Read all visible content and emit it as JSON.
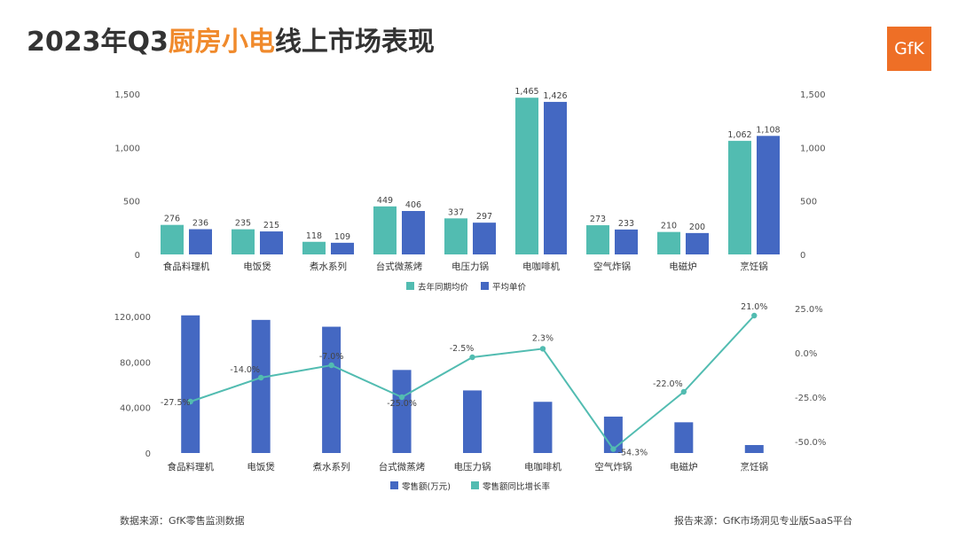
{
  "header": {
    "title_pre": "2023年Q3",
    "title_highlight": "厨房小电",
    "title_post": "线上市场表现",
    "logo_text": "GfK"
  },
  "footer": {
    "data_source": "数据来源：GfK零售监测数据",
    "report_source": "报告来源：GfK市场洞见专业版SaaS平台"
  },
  "colors": {
    "teal": "#52bcb1",
    "blue": "#4468c2",
    "accent": "#f08a2c",
    "logo": "#ee6f26"
  },
  "chart_data": [
    {
      "type": "bar",
      "categories": [
        "食品料理机",
        "电饭煲",
        "煮水系列",
        "台式微蒸烤",
        "电压力锅",
        "电咖啡机",
        "空气炸锅",
        "电磁炉",
        "烹饪锅"
      ],
      "series": [
        {
          "name": "去年同期均价",
          "values": [
            276,
            235,
            118,
            449,
            337,
            1465,
            273,
            210,
            1062
          ],
          "labels": [
            "276",
            "235",
            "118",
            "449",
            "337",
            "1,465",
            "273",
            "210",
            "1,062"
          ]
        },
        {
          "name": "平均单价",
          "values": [
            236,
            215,
            109,
            406,
            297,
            1426,
            233,
            200,
            1108
          ],
          "labels": [
            "236",
            "215",
            "109",
            "406",
            "297",
            "1,426",
            "233",
            "200",
            "1,108"
          ]
        }
      ],
      "ylim": [
        0,
        1500
      ],
      "yticks": [
        0,
        500,
        1000,
        1500
      ],
      "ytick_labels": [
        "0",
        "500",
        "1,000",
        "1,500"
      ],
      "legend_position": "bottom"
    },
    {
      "type": "bar",
      "categories": [
        "食品料理机",
        "电饭煲",
        "煮水系列",
        "台式微蒸烤",
        "电压力锅",
        "电咖啡机",
        "空气炸锅",
        "电磁炉",
        "烹饪锅"
      ],
      "series": [
        {
          "name": "零售额(万元)",
          "type": "bar",
          "axis": "left",
          "values": [
            121000,
            117000,
            111000,
            73000,
            55000,
            45000,
            32000,
            27000,
            7000
          ]
        },
        {
          "name": "零售额同比增长率",
          "type": "line",
          "axis": "right",
          "values": [
            -27.5,
            -14.0,
            -7.0,
            -25.0,
            -2.5,
            2.3,
            -54.3,
            -22.0,
            21.0
          ],
          "labels": [
            "-27.5%",
            "-14.0%",
            "-7.0%",
            "-25.0%",
            "-2.5%",
            "2.3%",
            "-54.3%",
            "-22.0%",
            "21.0%"
          ]
        }
      ],
      "y_left_lim": [
        0,
        120000
      ],
      "y_left_ticks": [
        0,
        40000,
        80000,
        120000
      ],
      "y_left_tick_labels": [
        "0",
        "40,000",
        "80,000",
        "120,000"
      ],
      "y_right_lim": [
        -50,
        25
      ],
      "y_right_ticks": [
        -50,
        -25,
        0,
        25
      ],
      "y_right_tick_labels": [
        "-50.0%",
        "-25.0%",
        "0.0%",
        "25.0%"
      ],
      "legend_position": "bottom"
    }
  ]
}
